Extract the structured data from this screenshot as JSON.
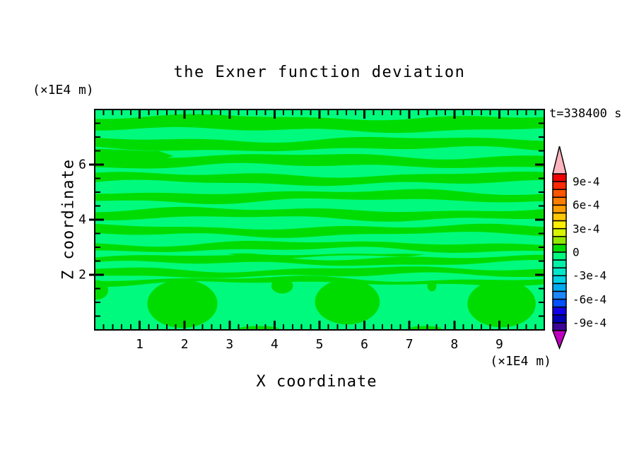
{
  "window": {
    "background": "#ffffff"
  },
  "title": "the Exner function deviation",
  "time_label": "t=338400 s",
  "x_axis": {
    "title": "X coordinate",
    "unit_label": "(×1E4 m)",
    "range_1e4_m": [
      0,
      10
    ],
    "major_ticks": [
      1,
      2,
      3,
      4,
      5,
      6,
      7,
      8,
      9
    ],
    "minor_tick_step": 0.2
  },
  "z_axis": {
    "title": "Z coordinate",
    "unit_label": "(×1E4 m)",
    "range_1e4_m": [
      0,
      8
    ],
    "major_ticks": [
      2,
      4,
      6
    ],
    "minor_tick_step": 0.5
  },
  "colorbar": {
    "outline_color": "#000000",
    "over_range_color": "#FFB4BE",
    "under_range_color": "#BE00BE",
    "segment_colors": [
      "#F00000",
      "#FF2800",
      "#FF5500",
      "#FF7D00",
      "#FF9E00",
      "#FFC800",
      "#FFF000",
      "#D7F500",
      "#91E800",
      "#00DC00",
      "#00FA7D",
      "#00F0A5",
      "#00E6C8",
      "#00D2E6",
      "#00AAF0",
      "#1E87FF",
      "#0050FF",
      "#0F00E6",
      "#0000B4",
      "#3C0596"
    ],
    "boundary_labels": [
      {
        "text": "9e-4",
        "boundary_index": 1
      },
      {
        "text": "6e-4",
        "boundary_index": 4
      },
      {
        "text": "3e-4",
        "boundary_index": 7
      },
      {
        "text": "0",
        "boundary_index": 10
      },
      {
        "text": "-3e-4",
        "boundary_index": 13
      },
      {
        "text": "-6e-4",
        "boundary_index": 16
      },
      {
        "text": "-9e-4",
        "boundary_index": 19
      }
    ]
  },
  "chart_data": {
    "type": "contour",
    "title": "the Exner function deviation",
    "xlabel": "X coordinate",
    "ylabel": "Z coordinate",
    "units": "x1E4 m",
    "time_seconds": 338400,
    "x_range": [
      0,
      10
    ],
    "z_range": [
      0,
      8
    ],
    "contour_interval": 0.0001,
    "labeled_levels": [
      0.0009,
      0.0006,
      0.0003,
      0,
      -0.0003,
      -0.0006,
      -0.0009
    ],
    "field": {
      "background": {
        "value_range": [
          -0.0001,
          0
        ],
        "color": "#00FA7D"
      },
      "positive_band_value_range": [
        0,
        0.0001
      ],
      "positive_band_color": "#00DC00",
      "positive_bands": [
        {
          "x_span": [
            0,
            10
          ],
          "z_span": [
            7.26,
            7.72
          ]
        },
        {
          "x_span": [
            0,
            10
          ],
          "z_span": [
            6.56,
            6.92
          ]
        },
        {
          "x_span": [
            0,
            10
          ],
          "z_span": [
            5.95,
            6.31
          ]
        },
        {
          "x_span": [
            0,
            10
          ],
          "z_span": [
            5.33,
            5.64
          ]
        },
        {
          "x_span": [
            0,
            10
          ],
          "z_span": [
            4.69,
            5.0
          ]
        },
        {
          "x_span": [
            0,
            10
          ],
          "z_span": [
            4.05,
            4.36
          ]
        },
        {
          "x_span": [
            0,
            10
          ],
          "z_span": [
            3.46,
            3.74
          ]
        },
        {
          "x_span": [
            0,
            10
          ],
          "z_span": [
            2.9,
            3.15
          ]
        },
        {
          "x_span": [
            0,
            10
          ],
          "z_span": [
            2.41,
            2.64
          ]
        },
        {
          "x_span": [
            0,
            10
          ],
          "z_span": [
            1.97,
            2.21
          ]
        },
        {
          "x_span": [
            0,
            10
          ],
          "z_span": [
            1.69,
            1.85
          ]
        },
        {
          "x_span": [
            3.0,
            7.3
          ],
          "z_span": [
            2.7,
            2.8
          ],
          "taper": "both"
        },
        {
          "x_span": [
            0,
            1.7
          ],
          "z_span": [
            6.26,
            6.58
          ],
          "taper": "right"
        }
      ],
      "positive_blobs": [
        {
          "cx": 1.95,
          "cz": 0.95,
          "rx": 0.78,
          "rz": 0.88
        },
        {
          "cx": 5.62,
          "cz": 1.02,
          "rx": 0.72,
          "rz": 0.82
        },
        {
          "cx": 9.05,
          "cz": 0.95,
          "rx": 0.76,
          "rz": 0.86
        },
        {
          "cx": 4.17,
          "cz": 1.6,
          "rx": 0.24,
          "rz": 0.28
        },
        {
          "cx": 7.5,
          "cz": 1.6,
          "rx": 0.1,
          "rz": 0.2
        },
        {
          "cx": 3.65,
          "cz": 0.04,
          "rx": 0.45,
          "rz": 0.1
        },
        {
          "cx": 7.35,
          "cz": 0.04,
          "rx": 0.36,
          "rz": 0.1
        },
        {
          "cx": 0.05,
          "cz": 1.45,
          "rx": 0.25,
          "rz": 0.35
        }
      ]
    }
  },
  "frame_color": "#000000",
  "text_color": "#000000"
}
